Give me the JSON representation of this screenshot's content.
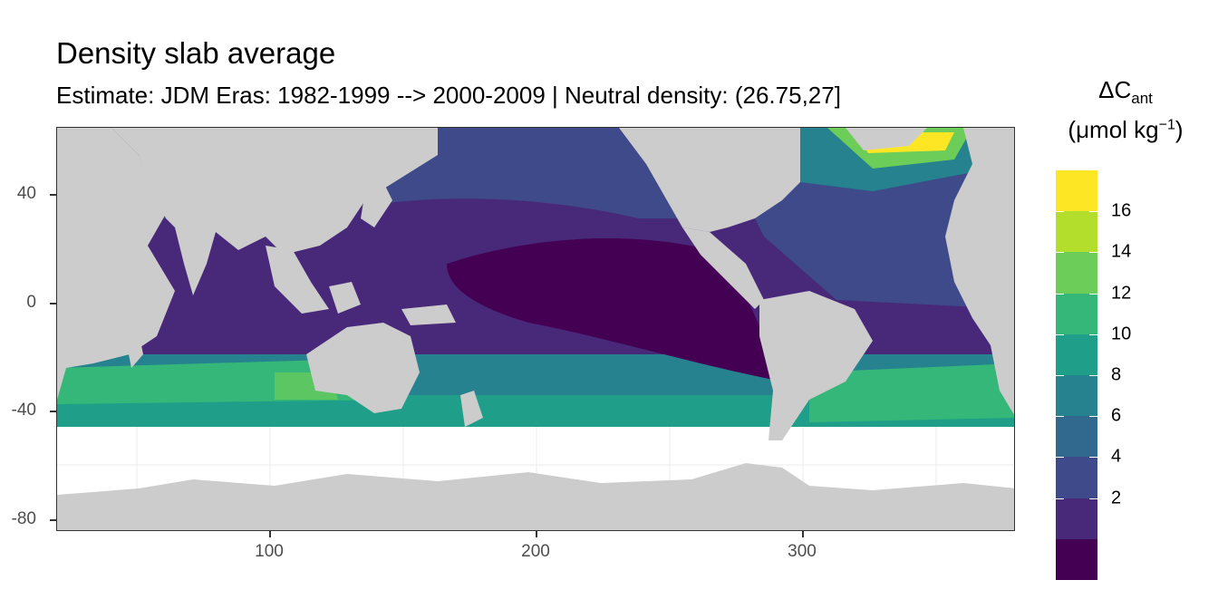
{
  "title": "Density slab average",
  "subtitle": "Estimate: JDM Eras: 1982-1999 --> 2000-2009 | Neutral density: (26.75,27]",
  "axes": {
    "x_ticks": [
      "100",
      "200",
      "300"
    ],
    "y_ticks": [
      "40",
      "0",
      "-40",
      "-80"
    ]
  },
  "legend": {
    "title_line1_main": "ΔC",
    "title_line1_sub": "ant",
    "title_line2": "(μmol kg",
    "title_line2_sup": "−1",
    "title_line2_end": ")",
    "labels": [
      "16",
      "14",
      "12",
      "10",
      "8",
      "6",
      "4",
      "2"
    ],
    "colors": [
      "#FDE725",
      "#B4DE2C",
      "#6DCD59",
      "#35B779",
      "#1F9E89",
      "#26828E",
      "#31688E",
      "#3E4A89",
      "#482878",
      "#440154"
    ]
  },
  "chart_data": {
    "type": "heatmap",
    "title": "Density slab average",
    "subtitle": "Estimate: JDM Eras: 1982-1999 --> 2000-2009 | Neutral density: (26.75,27]",
    "xlim": [
      20,
      380
    ],
    "ylim": [
      -85,
      65
    ],
    "x_ticks": [
      100,
      200,
      300
    ],
    "y_ticks": [
      40,
      0,
      -40,
      -80
    ],
    "legend_title": "ΔCant (μmol kg−1)",
    "legend_breaks": [
      2,
      4,
      6,
      8,
      10,
      12,
      14,
      16
    ],
    "legend_position": "right",
    "grid": true,
    "land_color": "#CCCCCC",
    "no_data_color": "#FFFFFF"
  }
}
